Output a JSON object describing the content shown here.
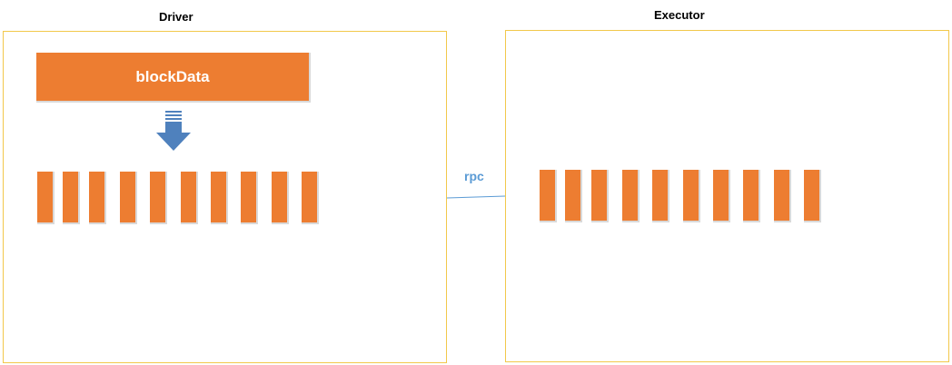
{
  "driver": {
    "title": "Driver",
    "block_label": "blockData",
    "blocks_count_label": ""
  },
  "executor": {
    "title": "Executor"
  },
  "connection": {
    "label": "rpc"
  },
  "colors": {
    "panel_border": "#f2c84b",
    "block_fill": "#ed7d31",
    "block_shadow": "#d9d9d9",
    "arrow": "#4f81bd",
    "rpc_text": "#5b9bd5",
    "rpc_line": "#5b9bd5"
  },
  "icons": {
    "transfer": "down-arrow-icon"
  }
}
